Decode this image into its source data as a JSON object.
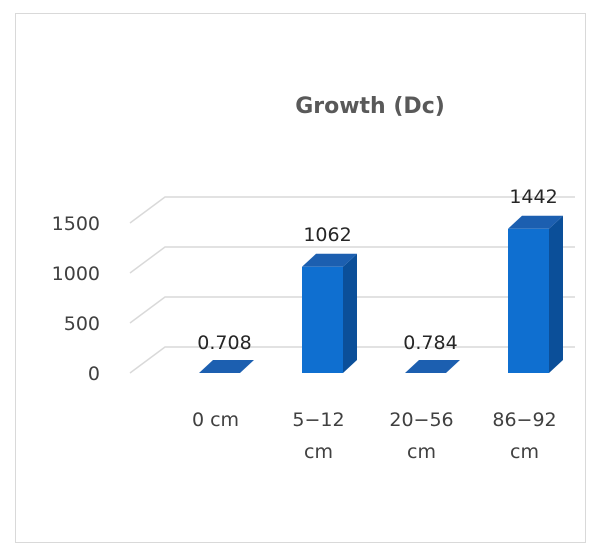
{
  "chart_data": {
    "type": "bar",
    "title": "Growth (Dc)",
    "categories": [
      [
        "0 cm"
      ],
      [
        "5−12",
        "cm"
      ],
      [
        "20−56",
        "cm"
      ],
      [
        "86−92",
        "cm"
      ]
    ],
    "values": [
      0.708,
      1062,
      0.784,
      1442
    ],
    "data_labels": [
      "0.708",
      "1062",
      "0.784",
      "1442"
    ],
    "yticks": [
      0,
      500,
      1000,
      1500
    ],
    "ytick_labels": [
      "0",
      "500",
      "1000",
      "1500"
    ],
    "ylim": [
      0,
      2000
    ],
    "xlabel": "",
    "ylabel": "",
    "grid": true,
    "legend": "none",
    "style": "3d-column",
    "colors": {
      "bar_front": "#0f6fd0",
      "bar_side": "#0b4f99",
      "bar_top": "#1c5fb0",
      "grid": "#d9d9d9",
      "frame": "#d9d9d9"
    }
  }
}
